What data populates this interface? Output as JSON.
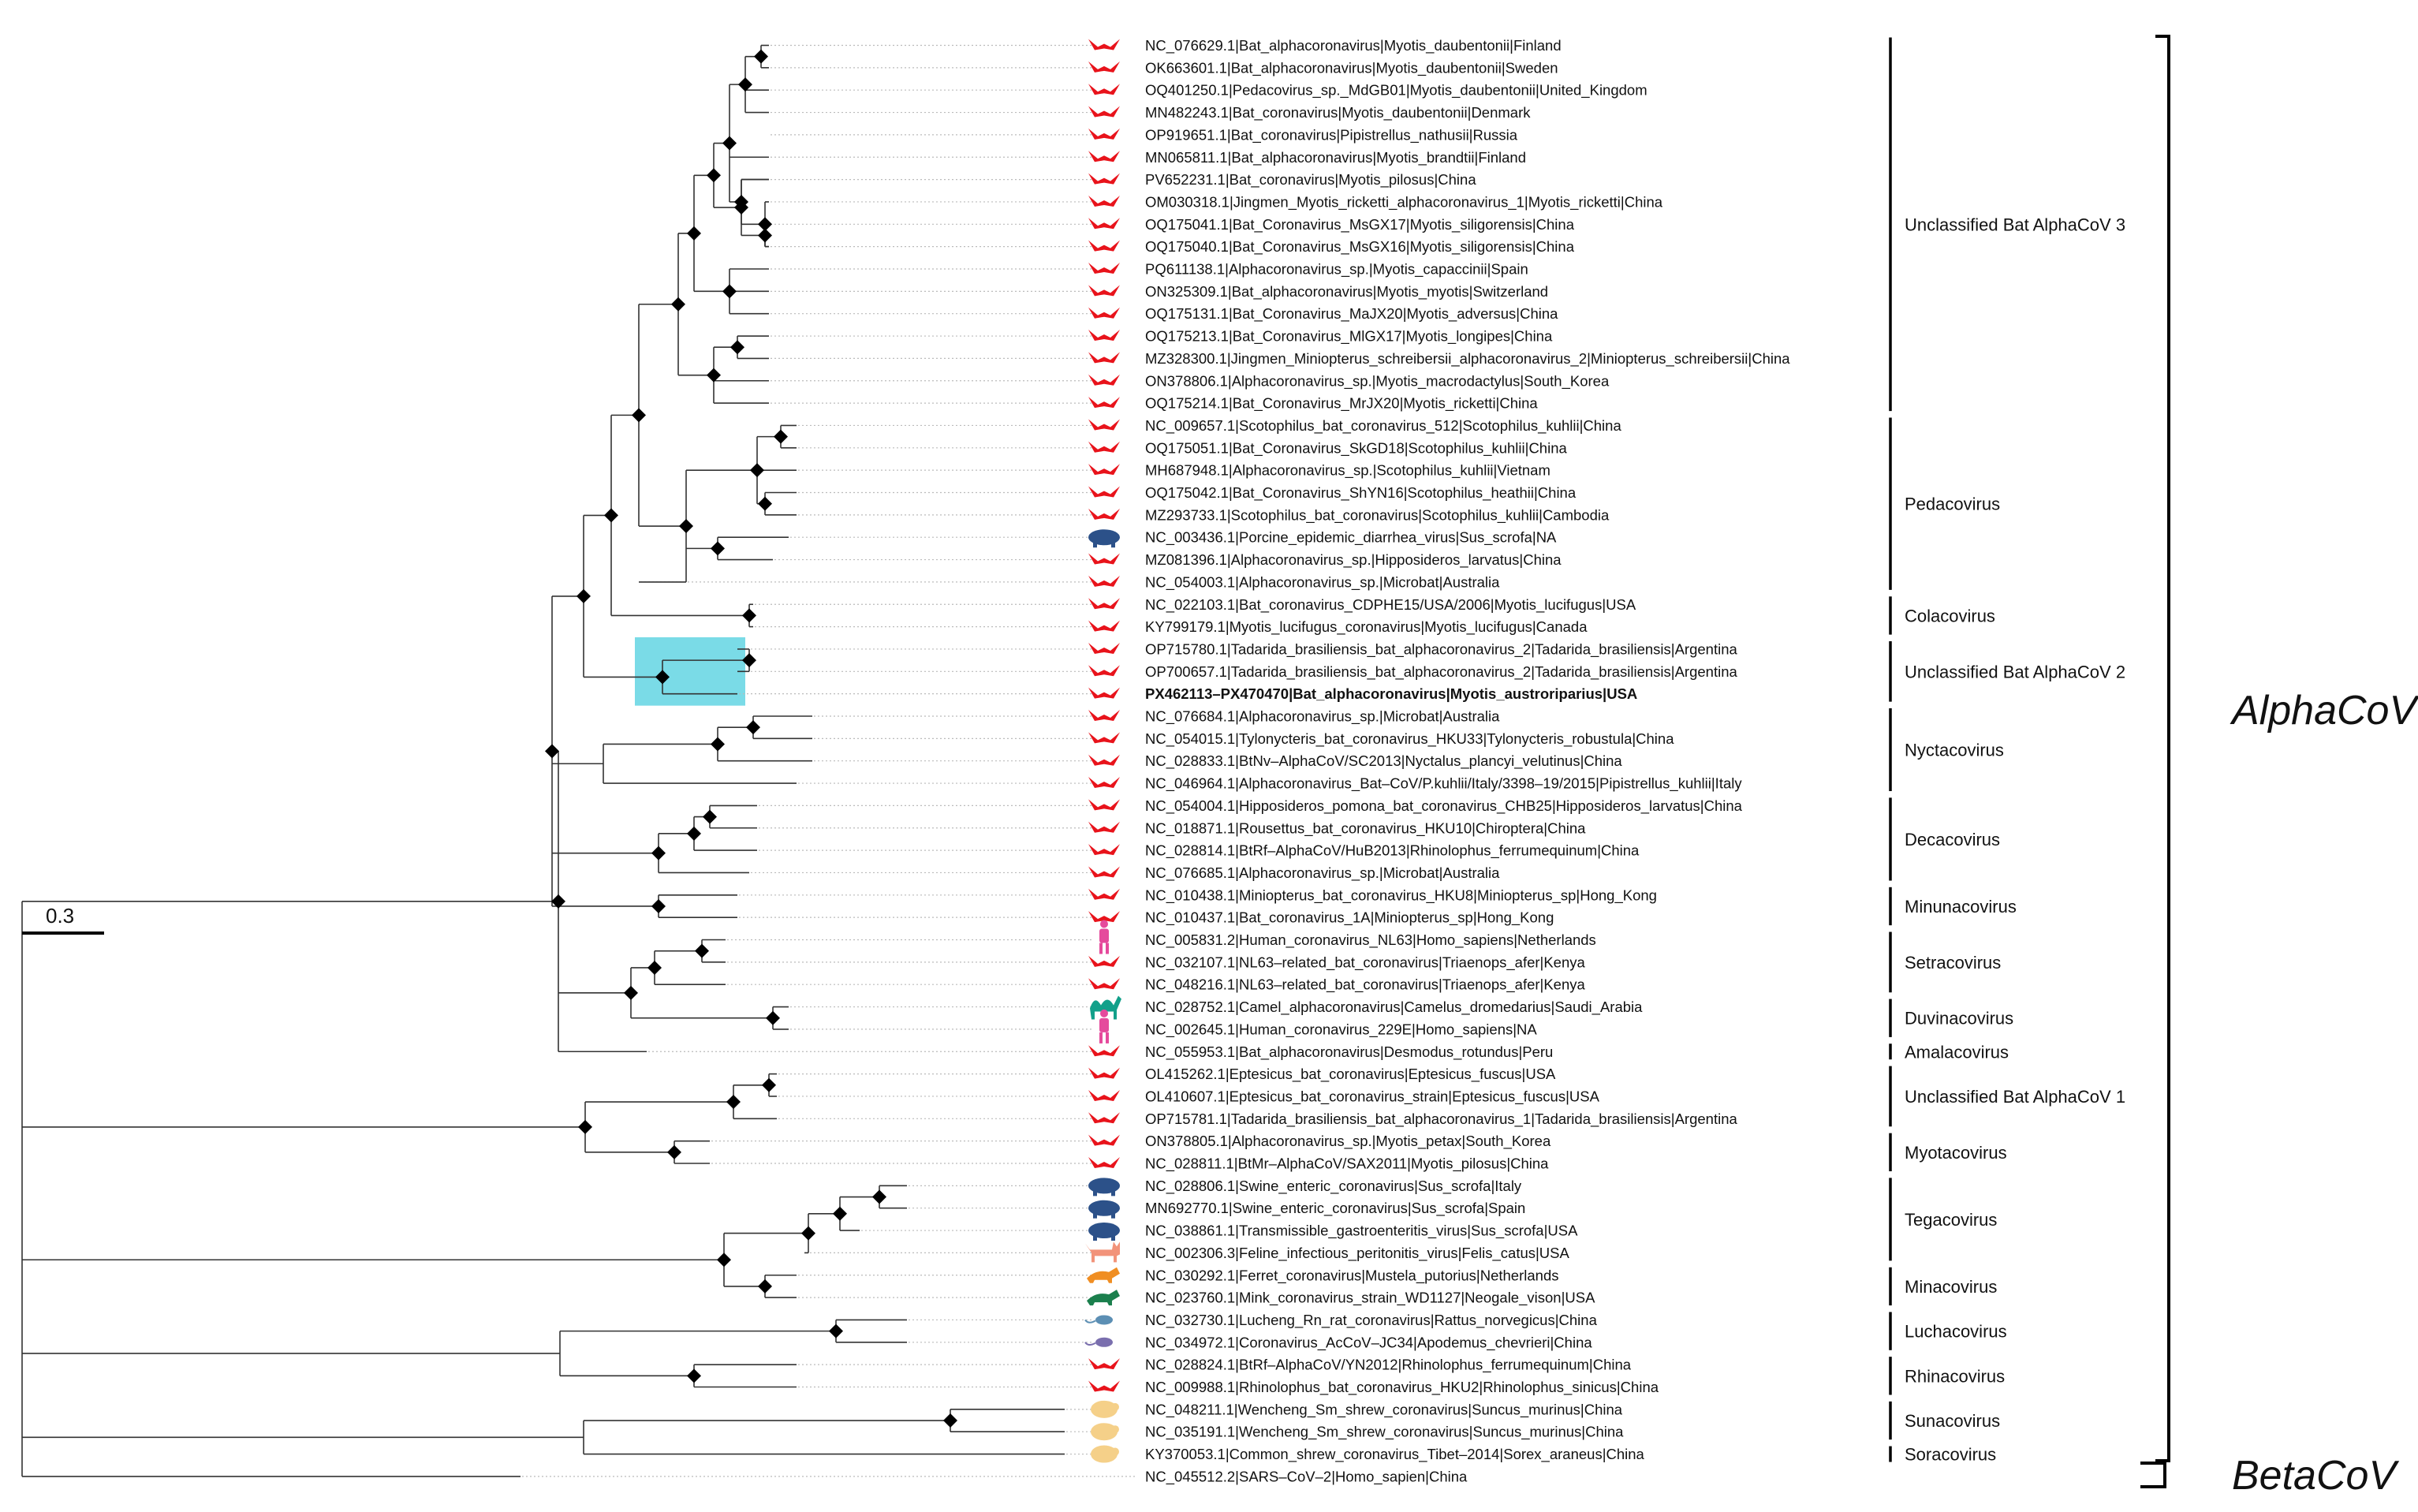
{
  "scale_bar": {
    "label": "0.3"
  },
  "groups": {
    "alpha": "AlphaCoV",
    "beta": "BetaCoV"
  },
  "colors": {
    "bat": "#e8131b",
    "pig": "#2c5189",
    "human": "#e54a9c",
    "camel": "#12a08a",
    "cat": "#f2937a",
    "ferret": "#f08e22",
    "mink": "#1b7f4d",
    "rat": "#5c8fb4",
    "mouse": "#7a6fae",
    "shrew": "#f5d089",
    "highlight": "#63d5e3"
  },
  "leaves": [
    {
      "label": "NC_076629.1|Bat_alphacoronavirus|Myotis_daubentonii|Finland",
      "host": "bat"
    },
    {
      "label": "OK663601.1|Bat_alphacoronavirus|Myotis_daubentonii|Sweden",
      "host": "bat"
    },
    {
      "label": "OQ401250.1|Pedacovirus_sp._MdGB01|Myotis_daubentonii|United_Kingdom",
      "host": "bat"
    },
    {
      "label": "MN482243.1|Bat_coronavirus|Myotis_daubentonii|Denmark",
      "host": "bat"
    },
    {
      "label": "OP919651.1|Bat_coronavirus|Pipistrellus_nathusii|Russia",
      "host": "bat"
    },
    {
      "label": "MN065811.1|Bat_alphacoronavirus|Myotis_brandtii|Finland",
      "host": "bat"
    },
    {
      "label": "PV652231.1|Bat_coronavirus|Myotis_pilosus|China",
      "host": "bat"
    },
    {
      "label": "OM030318.1|Jingmen_Myotis_ricketti_alphacoronavirus_1|Myotis_ricketti|China",
      "host": "bat"
    },
    {
      "label": "OQ175041.1|Bat_Coronavirus_MsGX17|Myotis_siligorensis|China",
      "host": "bat"
    },
    {
      "label": "OQ175040.1|Bat_Coronavirus_MsGX16|Myotis_siligorensis|China",
      "host": "bat"
    },
    {
      "label": "PQ611138.1|Alphacoronavirus_sp.|Myotis_capaccinii|Spain",
      "host": "bat"
    },
    {
      "label": "ON325309.1|Bat_alphacoronavirus|Myotis_myotis|Switzerland",
      "host": "bat"
    },
    {
      "label": "OQ175131.1|Bat_Coronavirus_MaJX20|Myotis_adversus|China",
      "host": "bat"
    },
    {
      "label": "OQ175213.1|Bat_Coronavirus_MlGX17|Myotis_longipes|China",
      "host": "bat"
    },
    {
      "label": "MZ328300.1|Jingmen_Miniopterus_schreibersii_alphacoronavirus_2|Miniopterus_schreibersii|China",
      "host": "bat"
    },
    {
      "label": "ON378806.1|Alphacoronavirus_sp.|Myotis_macrodactylus|South_Korea",
      "host": "bat"
    },
    {
      "label": "OQ175214.1|Bat_Coronavirus_MrJX20|Myotis_ricketti|China",
      "host": "bat"
    },
    {
      "label": "NC_009657.1|Scotophilus_bat_coronavirus_512|Scotophilus_kuhlii|China",
      "host": "bat"
    },
    {
      "label": "OQ175051.1|Bat_Coronavirus_SkGD18|Scotophilus_kuhlii|China",
      "host": "bat"
    },
    {
      "label": "MH687948.1|Alphacoronavirus_sp.|Scotophilus_kuhlii|Vietnam",
      "host": "bat"
    },
    {
      "label": "OQ175042.1|Bat_Coronavirus_ShYN16|Scotophilus_heathii|China",
      "host": "bat"
    },
    {
      "label": "MZ293733.1|Scotophilus_bat_coronavirus|Scotophilus_kuhlii|Cambodia",
      "host": "bat"
    },
    {
      "label": "NC_003436.1|Porcine_epidemic_diarrhea_virus|Sus_scrofa|NA",
      "host": "pig"
    },
    {
      "label": "MZ081396.1|Alphacoronavirus_sp.|Hipposideros_larvatus|China",
      "host": "bat"
    },
    {
      "label": "NC_054003.1|Alphacoronavirus_sp.|Microbat|Australia",
      "host": "bat"
    },
    {
      "label": "NC_022103.1|Bat_coronavirus_CDPHE15/USA/2006|Myotis_lucifugus|USA",
      "host": "bat"
    },
    {
      "label": "KY799179.1|Myotis_lucifugus_coronavirus|Myotis_lucifugus|Canada",
      "host": "bat"
    },
    {
      "label": "OP715780.1|Tadarida_brasiliensis_bat_alphacoronavirus_2|Tadarida_brasiliensis|Argentina",
      "host": "bat"
    },
    {
      "label": "OP700657.1|Tadarida_brasiliensis_bat_alphacoronavirus_2|Tadarida_brasiliensis|Argentina",
      "host": "bat"
    },
    {
      "label": "PX462113–PX470470|Bat_alphacoronavirus|Myotis_austroriparius|USA",
      "host": "bat",
      "bold": true
    },
    {
      "label": "NC_076684.1|Alphacoronavirus_sp.|Microbat|Australia",
      "host": "bat"
    },
    {
      "label": "NC_054015.1|Tylonycteris_bat_coronavirus_HKU33|Tylonycteris_robustula|China",
      "host": "bat"
    },
    {
      "label": "NC_028833.1|BtNv–AlphaCoV/SC2013|Nyctalus_plancyi_velutinus|China",
      "host": "bat"
    },
    {
      "label": "NC_046964.1|Alphacoronavirus_Bat–CoV/P.kuhlii/Italy/3398–19/2015|Pipistrellus_kuhlii|Italy",
      "host": "bat"
    },
    {
      "label": "NC_054004.1|Hipposideros_pomona_bat_coronavirus_CHB25|Hipposideros_larvatus|China",
      "host": "bat"
    },
    {
      "label": "NC_018871.1|Rousettus_bat_coronavirus_HKU10|Chiroptera|China",
      "host": "bat"
    },
    {
      "label": "NC_028814.1|BtRf–AlphaCoV/HuB2013|Rhinolophus_ferrumequinum|China",
      "host": "bat"
    },
    {
      "label": "NC_076685.1|Alphacoronavirus_sp.|Microbat|Australia",
      "host": "bat"
    },
    {
      "label": "NC_010438.1|Miniopterus_bat_coronavirus_HKU8|Miniopterus_sp|Hong_Kong",
      "host": "bat"
    },
    {
      "label": "NC_010437.1|Bat_coronavirus_1A|Miniopterus_sp|Hong_Kong",
      "host": "bat"
    },
    {
      "label": "NC_005831.2|Human_coronavirus_NL63|Homo_sapiens|Netherlands",
      "host": "human"
    },
    {
      "label": "NC_032107.1|NL63–related_bat_coronavirus|Triaenops_afer|Kenya",
      "host": "bat"
    },
    {
      "label": "NC_048216.1|NL63–related_bat_coronavirus|Triaenops_afer|Kenya",
      "host": "bat"
    },
    {
      "label": "NC_028752.1|Camel_alphacoronavirus|Camelus_dromedarius|Saudi_Arabia",
      "host": "camel"
    },
    {
      "label": "NC_002645.1|Human_coronavirus_229E|Homo_sapiens|NA",
      "host": "human"
    },
    {
      "label": "NC_055953.1|Bat_alphacoronavirus|Desmodus_rotundus|Peru",
      "host": "bat"
    },
    {
      "label": "OL415262.1|Eptesicus_bat_coronavirus|Eptesicus_fuscus|USA",
      "host": "bat"
    },
    {
      "label": "OL410607.1|Eptesicus_bat_coronavirus_strain|Eptesicus_fuscus|USA",
      "host": "bat"
    },
    {
      "label": "OP715781.1|Tadarida_brasiliensis_bat_alphacoronavirus_1|Tadarida_brasiliensis|Argentina",
      "host": "bat"
    },
    {
      "label": "ON378805.1|Alphacoronavirus_sp.|Myotis_petax|South_Korea",
      "host": "bat"
    },
    {
      "label": "NC_028811.1|BtMr–AlphaCoV/SAX2011|Myotis_pilosus|China",
      "host": "bat"
    },
    {
      "label": "NC_028806.1|Swine_enteric_coronavirus|Sus_scrofa|Italy",
      "host": "pig"
    },
    {
      "label": "MN692770.1|Swine_enteric_coronavirus|Sus_scrofa|Spain",
      "host": "pig"
    },
    {
      "label": "NC_038861.1|Transmissible_gastroenteritis_virus|Sus_scrofa|USA",
      "host": "pig"
    },
    {
      "label": "NC_002306.3|Feline_infectious_peritonitis_virus|Felis_catus|USA",
      "host": "cat"
    },
    {
      "label": "NC_030292.1|Ferret_coronavirus|Mustela_putorius|Netherlands",
      "host": "ferret"
    },
    {
      "label": "NC_023760.1|Mink_coronavirus_strain_WD1127|Neogale_vison|USA",
      "host": "mink"
    },
    {
      "label": "NC_032730.1|Lucheng_Rn_rat_coronavirus|Rattus_norvegicus|China",
      "host": "rat"
    },
    {
      "label": "NC_034972.1|Coronavirus_AcCoV–JC34|Apodemus_chevrieri|China",
      "host": "mouse"
    },
    {
      "label": "NC_028824.1|BtRf–AlphaCoV/YN2012|Rhinolophus_ferrumequinum|China",
      "host": "bat"
    },
    {
      "label": "NC_009988.1|Rhinolophus_bat_coronavirus_HKU2|Rhinolophus_sinicus|China",
      "host": "bat"
    },
    {
      "label": "NC_048211.1|Wencheng_Sm_shrew_coronavirus|Suncus_murinus|China",
      "host": "shrew"
    },
    {
      "label": "NC_035191.1|Wencheng_Sm_shrew_coronavirus|Suncus_murinus|China",
      "host": "shrew"
    },
    {
      "label": "KY370053.1|Common_shrew_coronavirus_Tibet–2014|Sorex_araneus|China",
      "host": "shrew"
    },
    {
      "label": "NC_045512.2|SARS–CoV–2|Homo_sapien|China",
      "host": "none"
    }
  ],
  "clades": [
    {
      "name": "Unclassified Bat AlphaCoV 3",
      "first": 0,
      "last": 16
    },
    {
      "name": "Pedacovirus",
      "first": 17,
      "last": 24
    },
    {
      "name": "Colacovirus",
      "first": 25,
      "last": 26
    },
    {
      "name": "Unclassified Bat AlphaCoV 2",
      "first": 27,
      "last": 29
    },
    {
      "name": "Nyctacovirus",
      "first": 30,
      "last": 33
    },
    {
      "name": "Decacovirus",
      "first": 34,
      "last": 37
    },
    {
      "name": "Minunacovirus",
      "first": 38,
      "last": 39
    },
    {
      "name": "Setracovirus",
      "first": 40,
      "last": 42
    },
    {
      "name": "Duvinacovirus",
      "first": 43,
      "last": 44
    },
    {
      "name": "Amalacovirus",
      "first": 45,
      "last": 45
    },
    {
      "name": "Unclassified Bat AlphaCoV 1",
      "first": 46,
      "last": 48
    },
    {
      "name": "Myotacovirus",
      "first": 49,
      "last": 50
    },
    {
      "name": "Tegacovirus",
      "first": 51,
      "last": 54
    },
    {
      "name": "Minacovirus",
      "first": 55,
      "last": 56
    },
    {
      "name": "Luchacovirus",
      "first": 57,
      "last": 58
    },
    {
      "name": "Rhinacovirus",
      "first": 59,
      "last": 60
    },
    {
      "name": "Sunacovirus",
      "first": 61,
      "last": 62
    },
    {
      "name": "Soracovirus",
      "first": 63,
      "last": 63
    }
  ]
}
